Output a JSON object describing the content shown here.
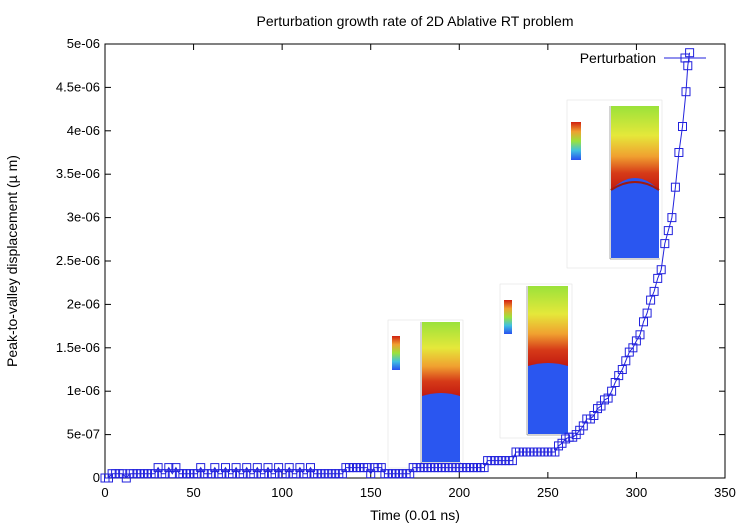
{
  "colors": {
    "series": "#2222dd",
    "frame": "#000000"
  },
  "chart_data": {
    "type": "scatter",
    "title": "Perturbation growth rate of 2D Ablative RT problem",
    "xlabel": "Time (0.01 ns)",
    "ylabel": "Peak-to-valley displacement (µ m)",
    "xlim": [
      0,
      350
    ],
    "ylim": [
      0,
      5e-06
    ],
    "x_ticks": [
      0,
      50,
      100,
      150,
      200,
      250,
      300,
      350
    ],
    "x_tick_labels": [
      "0",
      "50",
      "100",
      "150",
      "200",
      "250",
      "300",
      "350"
    ],
    "y_ticks": [
      0,
      5e-07,
      1e-06,
      1.5e-06,
      2e-06,
      2.5e-06,
      3e-06,
      3.5e-06,
      4e-06,
      4.5e-06,
      5e-06
    ],
    "y_tick_labels": [
      "0",
      "5e-07",
      "1e-06",
      "1.5e-06",
      "2e-06",
      "2.5e-06",
      "3e-06",
      "3.5e-06",
      "4e-06",
      "4.5e-06",
      "5e-06"
    ],
    "grid": false,
    "legend_position": "top-right",
    "series": [
      {
        "name": "Perturbation",
        "marker": "square",
        "points": [
          [
            0,
            0
          ],
          [
            2,
            0
          ],
          [
            4,
            5e-08
          ],
          [
            6,
            5e-08
          ],
          [
            8,
            5e-08
          ],
          [
            10,
            5e-08
          ],
          [
            12,
            0
          ],
          [
            14,
            5e-08
          ],
          [
            16,
            5e-08
          ],
          [
            18,
            5e-08
          ],
          [
            20,
            5e-08
          ],
          [
            22,
            5e-08
          ],
          [
            24,
            5e-08
          ],
          [
            26,
            5e-08
          ],
          [
            28,
            5e-08
          ],
          [
            30,
            1.2e-07
          ],
          [
            32,
            5e-08
          ],
          [
            34,
            5e-08
          ],
          [
            36,
            1.2e-07
          ],
          [
            38,
            5e-08
          ],
          [
            40,
            1.2e-07
          ],
          [
            42,
            5e-08
          ],
          [
            44,
            5e-08
          ],
          [
            46,
            5e-08
          ],
          [
            48,
            5e-08
          ],
          [
            50,
            5e-08
          ],
          [
            52,
            5e-08
          ],
          [
            54,
            1.2e-07
          ],
          [
            56,
            5e-08
          ],
          [
            58,
            5e-08
          ],
          [
            60,
            5e-08
          ],
          [
            62,
            1.2e-07
          ],
          [
            64,
            5e-08
          ],
          [
            66,
            5e-08
          ],
          [
            68,
            1.2e-07
          ],
          [
            70,
            5e-08
          ],
          [
            72,
            5e-08
          ],
          [
            74,
            1.2e-07
          ],
          [
            76,
            5e-08
          ],
          [
            78,
            5e-08
          ],
          [
            80,
            1.2e-07
          ],
          [
            82,
            5e-08
          ],
          [
            84,
            5e-08
          ],
          [
            86,
            1.2e-07
          ],
          [
            88,
            5e-08
          ],
          [
            90,
            5e-08
          ],
          [
            92,
            1.2e-07
          ],
          [
            94,
            5e-08
          ],
          [
            96,
            5e-08
          ],
          [
            98,
            1.2e-07
          ],
          [
            100,
            5e-08
          ],
          [
            102,
            5e-08
          ],
          [
            104,
            1.2e-07
          ],
          [
            106,
            5e-08
          ],
          [
            108,
            5e-08
          ],
          [
            110,
            1.2e-07
          ],
          [
            112,
            5e-08
          ],
          [
            114,
            5e-08
          ],
          [
            116,
            1.2e-07
          ],
          [
            118,
            5e-08
          ],
          [
            120,
            5e-08
          ],
          [
            122,
            5e-08
          ],
          [
            124,
            5e-08
          ],
          [
            126,
            5e-08
          ],
          [
            128,
            5e-08
          ],
          [
            130,
            5e-08
          ],
          [
            132,
            5e-08
          ],
          [
            134,
            5e-08
          ],
          [
            136,
            1.2e-07
          ],
          [
            138,
            1.2e-07
          ],
          [
            140,
            1.2e-07
          ],
          [
            142,
            1.2e-07
          ],
          [
            144,
            1.2e-07
          ],
          [
            146,
            1.2e-07
          ],
          [
            148,
            1.2e-07
          ],
          [
            150,
            5e-08
          ],
          [
            152,
            1.2e-07
          ],
          [
            154,
            1.2e-07
          ],
          [
            156,
            1.2e-07
          ],
          [
            158,
            5e-08
          ],
          [
            160,
            5e-08
          ],
          [
            162,
            5e-08
          ],
          [
            164,
            5e-08
          ],
          [
            166,
            5e-08
          ],
          [
            168,
            5e-08
          ],
          [
            170,
            5e-08
          ],
          [
            172,
            5e-08
          ],
          [
            174,
            1.2e-07
          ],
          [
            176,
            1.2e-07
          ],
          [
            178,
            1.2e-07
          ],
          [
            180,
            1.2e-07
          ],
          [
            182,
            1.2e-07
          ],
          [
            184,
            1.2e-07
          ],
          [
            186,
            1.2e-07
          ],
          [
            188,
            1.2e-07
          ],
          [
            190,
            1.2e-07
          ],
          [
            192,
            1.2e-07
          ],
          [
            194,
            1.2e-07
          ],
          [
            196,
            1.2e-07
          ],
          [
            198,
            1.2e-07
          ],
          [
            200,
            1.2e-07
          ],
          [
            202,
            1.2e-07
          ],
          [
            204,
            1.2e-07
          ],
          [
            206,
            1.2e-07
          ],
          [
            208,
            1.2e-07
          ],
          [
            210,
            1.2e-07
          ],
          [
            212,
            1.2e-07
          ],
          [
            214,
            1.2e-07
          ],
          [
            216,
            2e-07
          ],
          [
            218,
            2e-07
          ],
          [
            220,
            2e-07
          ],
          [
            222,
            2e-07
          ],
          [
            224,
            2e-07
          ],
          [
            226,
            2e-07
          ],
          [
            228,
            2e-07
          ],
          [
            230,
            2e-07
          ],
          [
            232,
            3e-07
          ],
          [
            234,
            3e-07
          ],
          [
            236,
            3e-07
          ],
          [
            238,
            3e-07
          ],
          [
            240,
            3e-07
          ],
          [
            242,
            3e-07
          ],
          [
            244,
            3e-07
          ],
          [
            246,
            3e-07
          ],
          [
            248,
            3e-07
          ],
          [
            250,
            3e-07
          ],
          [
            252,
            3e-07
          ],
          [
            254,
            3e-07
          ],
          [
            256,
            3.7e-07
          ],
          [
            258,
            4e-07
          ],
          [
            260,
            4.5e-07
          ],
          [
            262,
            4.7e-07
          ],
          [
            264,
            4.7e-07
          ],
          [
            266,
            5e-07
          ],
          [
            268,
            5.5e-07
          ],
          [
            270,
            6e-07
          ],
          [
            272,
            6.8e-07
          ],
          [
            274,
            6.8e-07
          ],
          [
            276,
            7.2e-07
          ],
          [
            278,
            8e-07
          ],
          [
            280,
            8.3e-07
          ],
          [
            282,
            9e-07
          ],
          [
            284,
            9.2e-07
          ],
          [
            286,
            1e-06
          ],
          [
            288,
            1.1e-06
          ],
          [
            290,
            1.18e-06
          ],
          [
            292,
            1.25e-06
          ],
          [
            294,
            1.35e-06
          ],
          [
            296,
            1.45e-06
          ],
          [
            298,
            1.5e-06
          ],
          [
            300,
            1.58e-06
          ],
          [
            302,
            1.65e-06
          ],
          [
            304,
            1.8e-06
          ],
          [
            306,
            1.9e-06
          ],
          [
            308,
            2.05e-06
          ],
          [
            310,
            2.15e-06
          ],
          [
            312,
            2.3e-06
          ],
          [
            314,
            2.4e-06
          ],
          [
            316,
            2.7e-06
          ],
          [
            318,
            2.85e-06
          ],
          [
            320,
            3e-06
          ],
          [
            322,
            3.35e-06
          ],
          [
            324,
            3.75e-06
          ],
          [
            326,
            4.05e-06
          ],
          [
            328,
            4.45e-06
          ],
          [
            329,
            4.75e-06
          ],
          [
            330,
            4.9e-06
          ]
        ]
      }
    ]
  }
}
